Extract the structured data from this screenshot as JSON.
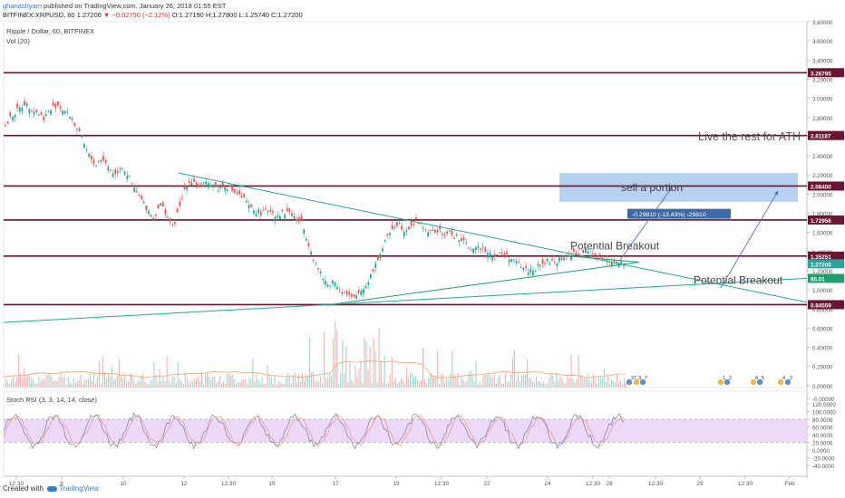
{
  "header": {
    "author": "ghanashyam",
    "published": " published on TradingView.com, January 26, 2018 01:55 EST",
    "symbol": "BITFINEX:XRPUSD, 60",
    "price": "1.27200",
    "change": "−0.02750 (−2.12%)",
    "ohlc": "O:1.27190  H:1.27800  L:1.25740  C:1.27200"
  },
  "legend": {
    "title": "Ripple / Dollar, 60, BITFINEX",
    "volume": "Vol (20)",
    "stoch": "Stoch RSI (3, 3, 14, 14, close)"
  },
  "footer": {
    "created": "Created with",
    "brand": "TradingView"
  },
  "colors": {
    "up": "#26a69a",
    "down": "#ef5350",
    "level_line": "#6b1530",
    "trendline": "#26a69a",
    "wedge_line": "#1e9e6e",
    "target_zone": "#9cc3ef",
    "arrow": "#5a6fb2",
    "stoch_band": "#e6c8f5"
  },
  "chart_data": [
    {
      "type": "candlestick",
      "title": "Ripple / Dollar, 60, BITFINEX",
      "x_ticks": [
        "12:30",
        "8",
        "10",
        "12",
        "12:30",
        "15",
        "17",
        "19",
        "12:30",
        "22",
        "24",
        "12:30",
        "28",
        "12:30",
        "29",
        "12:30",
        "Feb"
      ],
      "y_ticks": [
        "3.80000",
        "3.60000",
        "3.40000",
        "3.20000",
        "3.00000",
        "2.80000",
        "2.60000",
        "2.40000",
        "2.20000",
        "2.00000",
        "1.80000",
        "1.60000",
        "1.40000",
        "1.20000",
        "1.00000",
        "0.80000",
        "0.60000",
        "0.40000",
        "0.20000",
        "0.00000",
        "-0.00000"
      ],
      "ylim": [
        -0.02,
        3.8
      ],
      "horizontal_levels": [
        {
          "label": "3.26795",
          "value": 3.26795
        },
        {
          "label": "2.61187",
          "value": 2.61187
        },
        {
          "label": "2.08400",
          "value": 2.084
        },
        {
          "label": "1.72956",
          "value": 1.72956
        },
        {
          "label": "1.35251",
          "value": 1.35251
        },
        {
          "label": "0.84559",
          "value": 0.84559
        }
      ],
      "price_labels": [
        {
          "label": "1.27200",
          "value": 1.272
        },
        {
          "label": "85.01",
          "value": 1.12
        }
      ],
      "price_path": [
        2.7,
        2.82,
        2.88,
        2.95,
        2.9,
        2.85,
        2.8,
        2.88,
        2.94,
        2.88,
        2.82,
        2.7,
        2.55,
        2.4,
        2.3,
        2.38,
        2.28,
        2.2,
        2.3,
        2.2,
        2.05,
        1.95,
        1.85,
        1.75,
        1.9,
        1.8,
        1.65,
        1.85,
        2.1,
        2.15,
        2.08,
        2.1,
        2.12,
        2.05,
        2.1,
        2.05,
        2.0,
        1.95,
        1.85,
        1.82,
        1.8,
        1.85,
        1.78,
        1.8,
        1.82,
        1.75,
        1.7,
        1.5,
        1.3,
        1.15,
        1.05,
        1.1,
        1.0,
        0.95,
        0.9,
        0.98,
        1.05,
        1.2,
        1.35,
        1.5,
        1.65,
        1.7,
        1.62,
        1.68,
        1.72,
        1.65,
        1.6,
        1.62,
        1.58,
        1.6,
        1.55,
        1.5,
        1.45,
        1.42,
        1.45,
        1.4,
        1.35,
        1.38,
        1.35,
        1.3,
        1.25,
        1.2,
        1.22,
        1.25,
        1.3,
        1.28,
        1.32,
        1.35,
        1.38,
        1.36,
        1.4,
        1.38,
        1.35,
        1.32,
        1.3,
        1.28,
        1.27
      ],
      "annotations": [
        {
          "text": "Live the rest for ATH",
          "value": 2.6
        },
        {
          "text": "sell a portion",
          "value": 2.07
        },
        {
          "text": "-0.29810 (-13.43%) -29810",
          "value": 1.79
        },
        {
          "text": "Potential Breakout",
          "value": 1.46
        },
        {
          "text": "Potential Breakout",
          "value": 1.1
        }
      ],
      "target_zone": [
        1.92,
        2.22
      ],
      "overlay_badges": [
        "37",
        "3",
        "7",
        "1",
        "2",
        "8",
        "5",
        "4",
        "2"
      ]
    },
    {
      "type": "line",
      "title": "Stoch RSI (3, 3, 14, 14, close)",
      "y_ticks": [
        "120.0000",
        "100.0000",
        "80.0000",
        "60.0000",
        "40.0000",
        "20.0000",
        "0.0000",
        "-20.0000",
        "-40.0000"
      ],
      "ylim": [
        -40,
        120
      ],
      "band": [
        20,
        80
      ]
    }
  ]
}
